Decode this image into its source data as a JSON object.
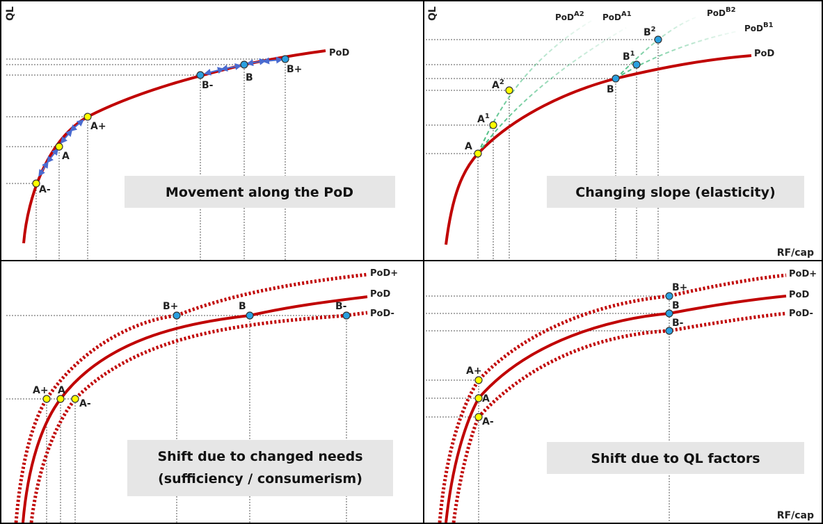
{
  "colors": {
    "curve": "#c00000",
    "point_a": "#ffff00",
    "point_b": "#2aa0e0",
    "arrow": "#4a6bd0",
    "green": "#3cb878",
    "guide": "#555555",
    "label_box": "#e6e6e6",
    "frame": "#000000"
  },
  "axes": {
    "y_label": "QL",
    "x_label": "RF/cap"
  },
  "panels": {
    "movement": {
      "title": "Movement along the PoD",
      "curve_label": "PoD",
      "points": {
        "a_minus": "A-",
        "a": "A",
        "a_plus": "A+",
        "b_minus": "B-",
        "b": "B",
        "b_plus": "B+"
      }
    },
    "slope": {
      "title": "Changing slope (elasticity)",
      "curve_label": "PoD",
      "branch_labels": {
        "a2": "PoDA2",
        "a1": "PoDA1",
        "b2": "PoDB2",
        "b1": "PoDB1"
      },
      "points": {
        "a": "A",
        "a1": "A1",
        "a2": "A2",
        "b": "B",
        "b1": "B1",
        "b2": "B2"
      }
    },
    "needs": {
      "title_line1": "Shift due to changed needs",
      "title_line2": "(sufficiency / consumerism)",
      "curve_labels": {
        "plus": "PoD+",
        "base": "PoD",
        "minus": "PoD-"
      },
      "points": {
        "a_plus": "A+",
        "a": "A",
        "a_minus": "A-",
        "b_plus": "B+",
        "b": "B",
        "b_minus": "B-"
      }
    },
    "factors": {
      "title": "Shift due to QL factors",
      "curve_labels": {
        "plus": "PoD+",
        "base": "PoD",
        "minus": "PoD-"
      },
      "points": {
        "a_plus": "A+",
        "a": "A",
        "a_minus": "A-",
        "b_plus": "B+",
        "b": "B",
        "b_minus": "B-"
      }
    }
  }
}
